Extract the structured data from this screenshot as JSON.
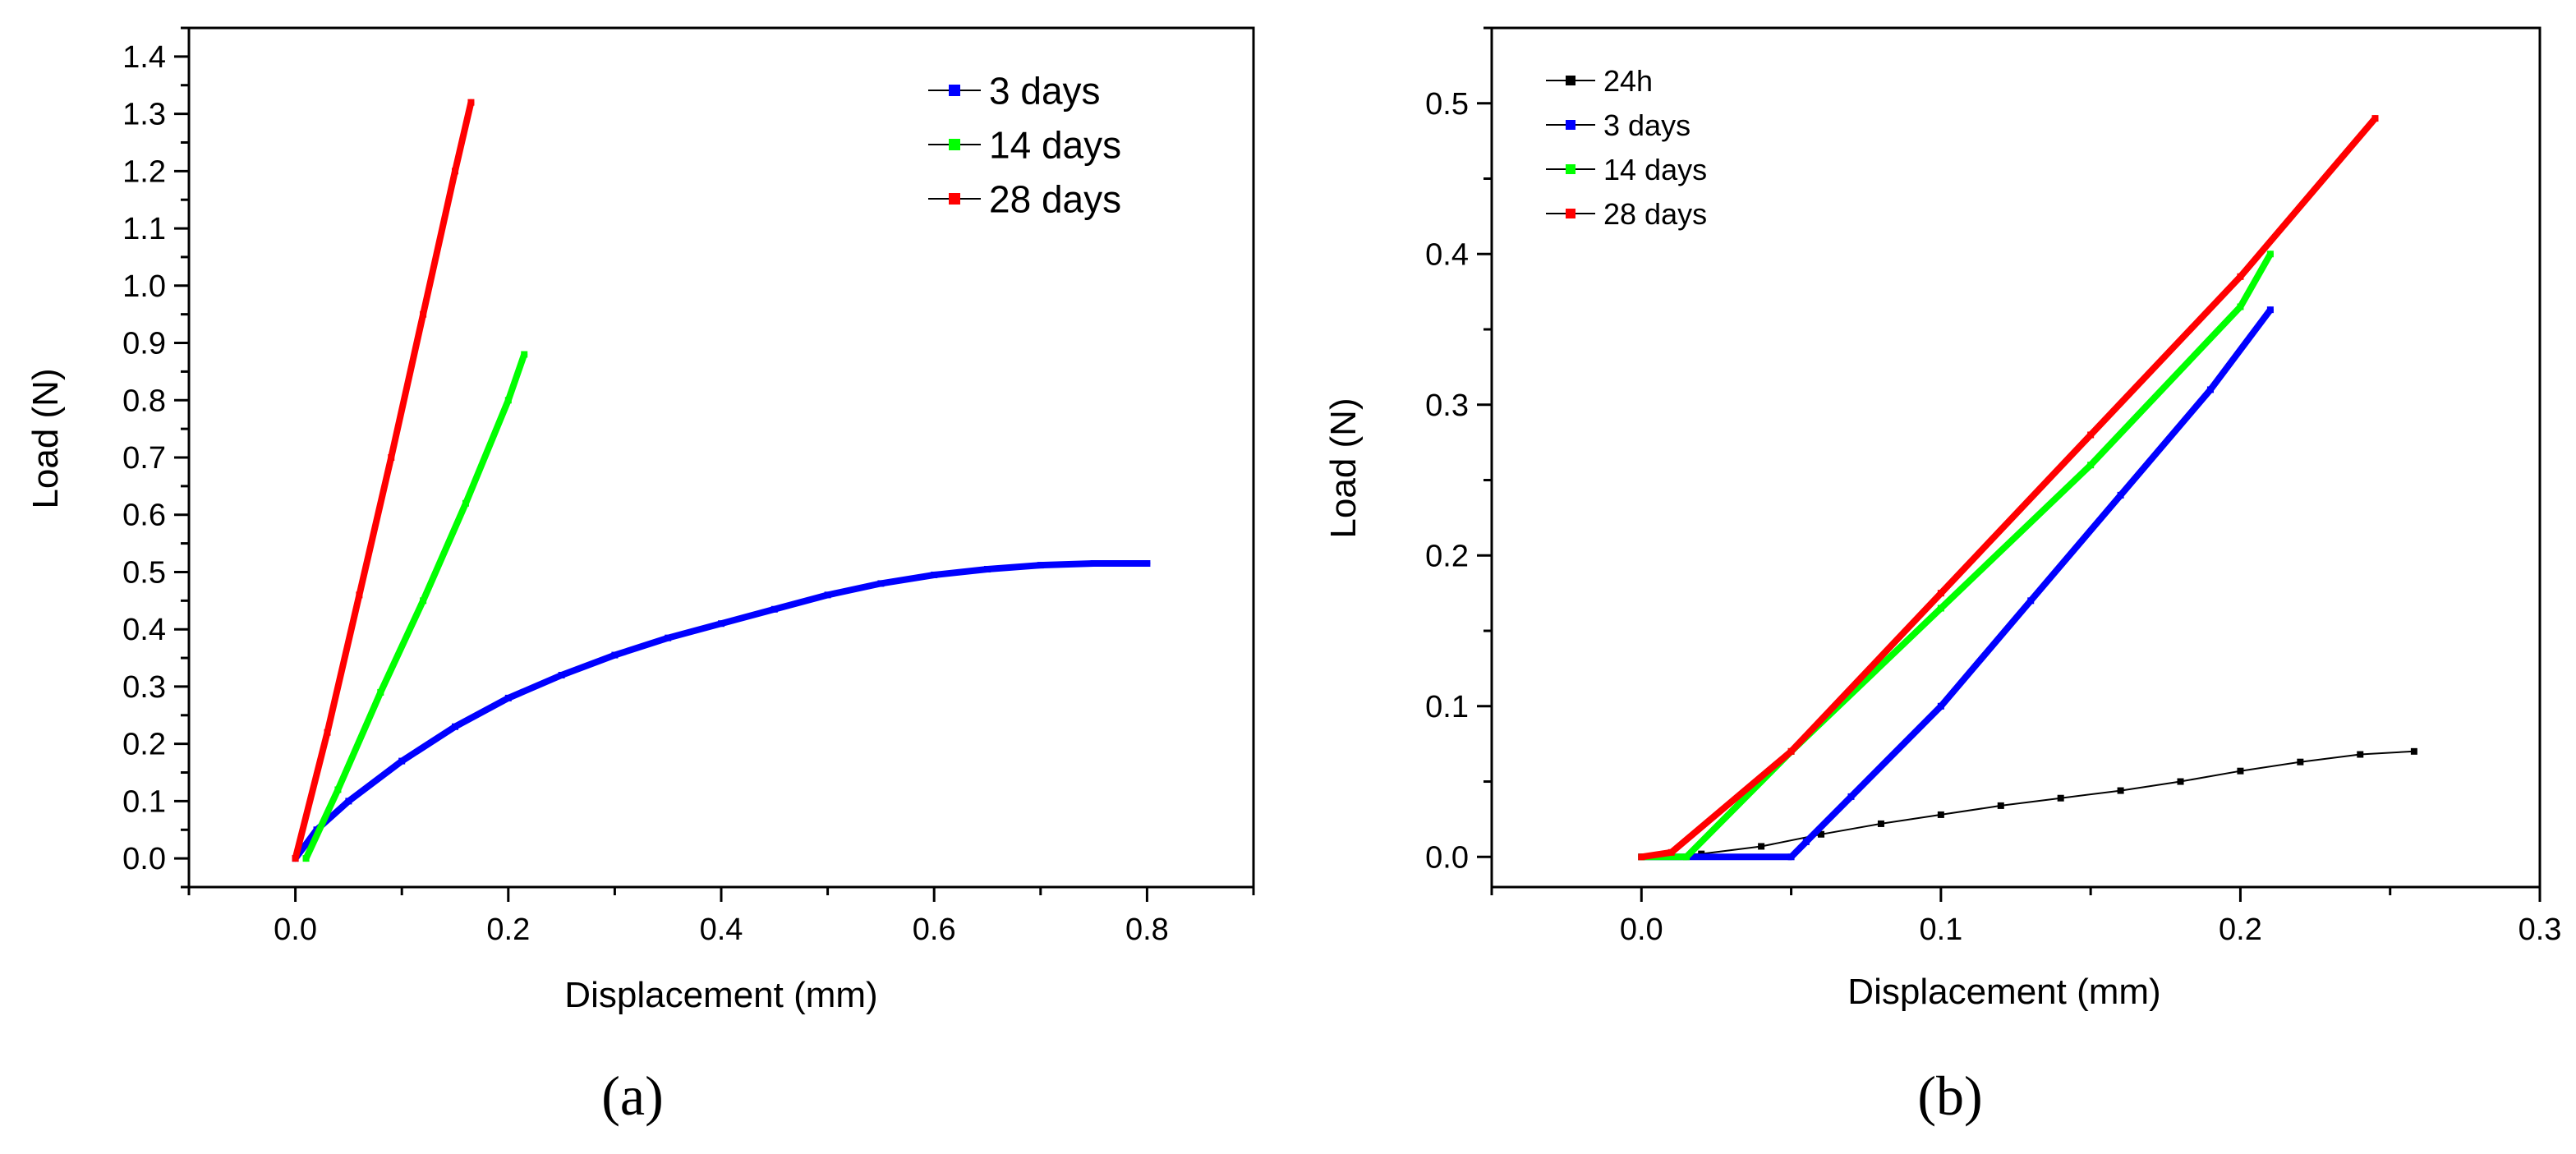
{
  "chart_data": [
    {
      "type": "line",
      "panel_label": "(a)",
      "xlabel": "Displacement (mm)",
      "ylabel": "Load (N)",
      "xlim": [
        -0.1,
        0.9
      ],
      "ylim": [
        -0.05,
        1.45
      ],
      "xticks": [
        0.0,
        0.2,
        0.4,
        0.6,
        0.8
      ],
      "yticks": [
        0.0,
        0.1,
        0.2,
        0.3,
        0.4,
        0.5,
        0.6,
        0.7,
        0.8,
        0.9,
        1.0,
        1.1,
        1.2,
        1.3,
        1.4
      ],
      "xtick_labels": [
        "0.0",
        "0.2",
        "0.4",
        "0.6",
        "0.8"
      ],
      "ytick_labels": [
        "0.0",
        "0.1",
        "0.2",
        "0.3",
        "0.4",
        "0.5",
        "0.6",
        "0.7",
        "0.8",
        "0.9",
        "1.0",
        "1.1",
        "1.2",
        "1.3",
        "1.4"
      ],
      "legend_position": "top-right",
      "series": [
        {
          "name": "3 days",
          "color": "#0000ff",
          "x": [
            0.0,
            0.02,
            0.05,
            0.1,
            0.15,
            0.2,
            0.25,
            0.3,
            0.35,
            0.4,
            0.45,
            0.5,
            0.55,
            0.6,
            0.65,
            0.7,
            0.75,
            0.8
          ],
          "y": [
            0.0,
            0.05,
            0.1,
            0.17,
            0.23,
            0.28,
            0.32,
            0.355,
            0.385,
            0.41,
            0.435,
            0.46,
            0.48,
            0.495,
            0.505,
            0.512,
            0.515,
            0.515
          ]
        },
        {
          "name": "14 days",
          "color": "#00ff00",
          "x": [
            0.01,
            0.04,
            0.08,
            0.12,
            0.16,
            0.2,
            0.215
          ],
          "y": [
            0.0,
            0.12,
            0.29,
            0.45,
            0.62,
            0.8,
            0.88
          ]
        },
        {
          "name": "28 days",
          "color": "#ff0000",
          "x": [
            0.0,
            0.03,
            0.06,
            0.09,
            0.12,
            0.15,
            0.165
          ],
          "y": [
            0.0,
            0.22,
            0.46,
            0.7,
            0.95,
            1.2,
            1.32
          ]
        }
      ]
    },
    {
      "type": "line",
      "panel_label": "(b)",
      "xlabel": "Displacement (mm)",
      "ylabel": "Load (N)",
      "xlim": [
        -0.05,
        0.3
      ],
      "ylim": [
        -0.02,
        0.55
      ],
      "xticks": [
        0.0,
        0.1,
        0.2,
        0.3
      ],
      "yticks": [
        0.0,
        0.1,
        0.2,
        0.3,
        0.4,
        0.5
      ],
      "xtick_labels": [
        "0.0",
        "0.1",
        "0.2",
        "0.3"
      ],
      "ytick_labels": [
        "0.0",
        "0.1",
        "0.2",
        "0.3",
        "0.4",
        "0.5"
      ],
      "legend_position": "top-left",
      "series": [
        {
          "name": "24h",
          "color": "#000000",
          "x": [
            0.0,
            0.02,
            0.04,
            0.06,
            0.08,
            0.1,
            0.12,
            0.14,
            0.16,
            0.18,
            0.2,
            0.22,
            0.24,
            0.258
          ],
          "y": [
            0.0,
            0.002,
            0.007,
            0.015,
            0.022,
            0.028,
            0.034,
            0.039,
            0.044,
            0.05,
            0.057,
            0.063,
            0.068,
            0.07
          ]
        },
        {
          "name": "3 days",
          "color": "#0000ff",
          "x": [
            0.0,
            0.05,
            0.055,
            0.07,
            0.1,
            0.13,
            0.16,
            0.19,
            0.21
          ],
          "y": [
            0.0,
            0.0,
            0.01,
            0.04,
            0.1,
            0.17,
            0.24,
            0.31,
            0.363
          ]
        },
        {
          "name": "14 days",
          "color": "#00ff00",
          "x": [
            0.0,
            0.015,
            0.05,
            0.1,
            0.15,
            0.2,
            0.21
          ],
          "y": [
            0.0,
            0.0,
            0.07,
            0.165,
            0.26,
            0.365,
            0.4
          ]
        },
        {
          "name": "28 days",
          "color": "#ff0000",
          "x": [
            0.0,
            0.01,
            0.05,
            0.1,
            0.15,
            0.2,
            0.245
          ],
          "y": [
            0.0,
            0.003,
            0.07,
            0.175,
            0.28,
            0.385,
            0.49
          ]
        }
      ]
    }
  ]
}
